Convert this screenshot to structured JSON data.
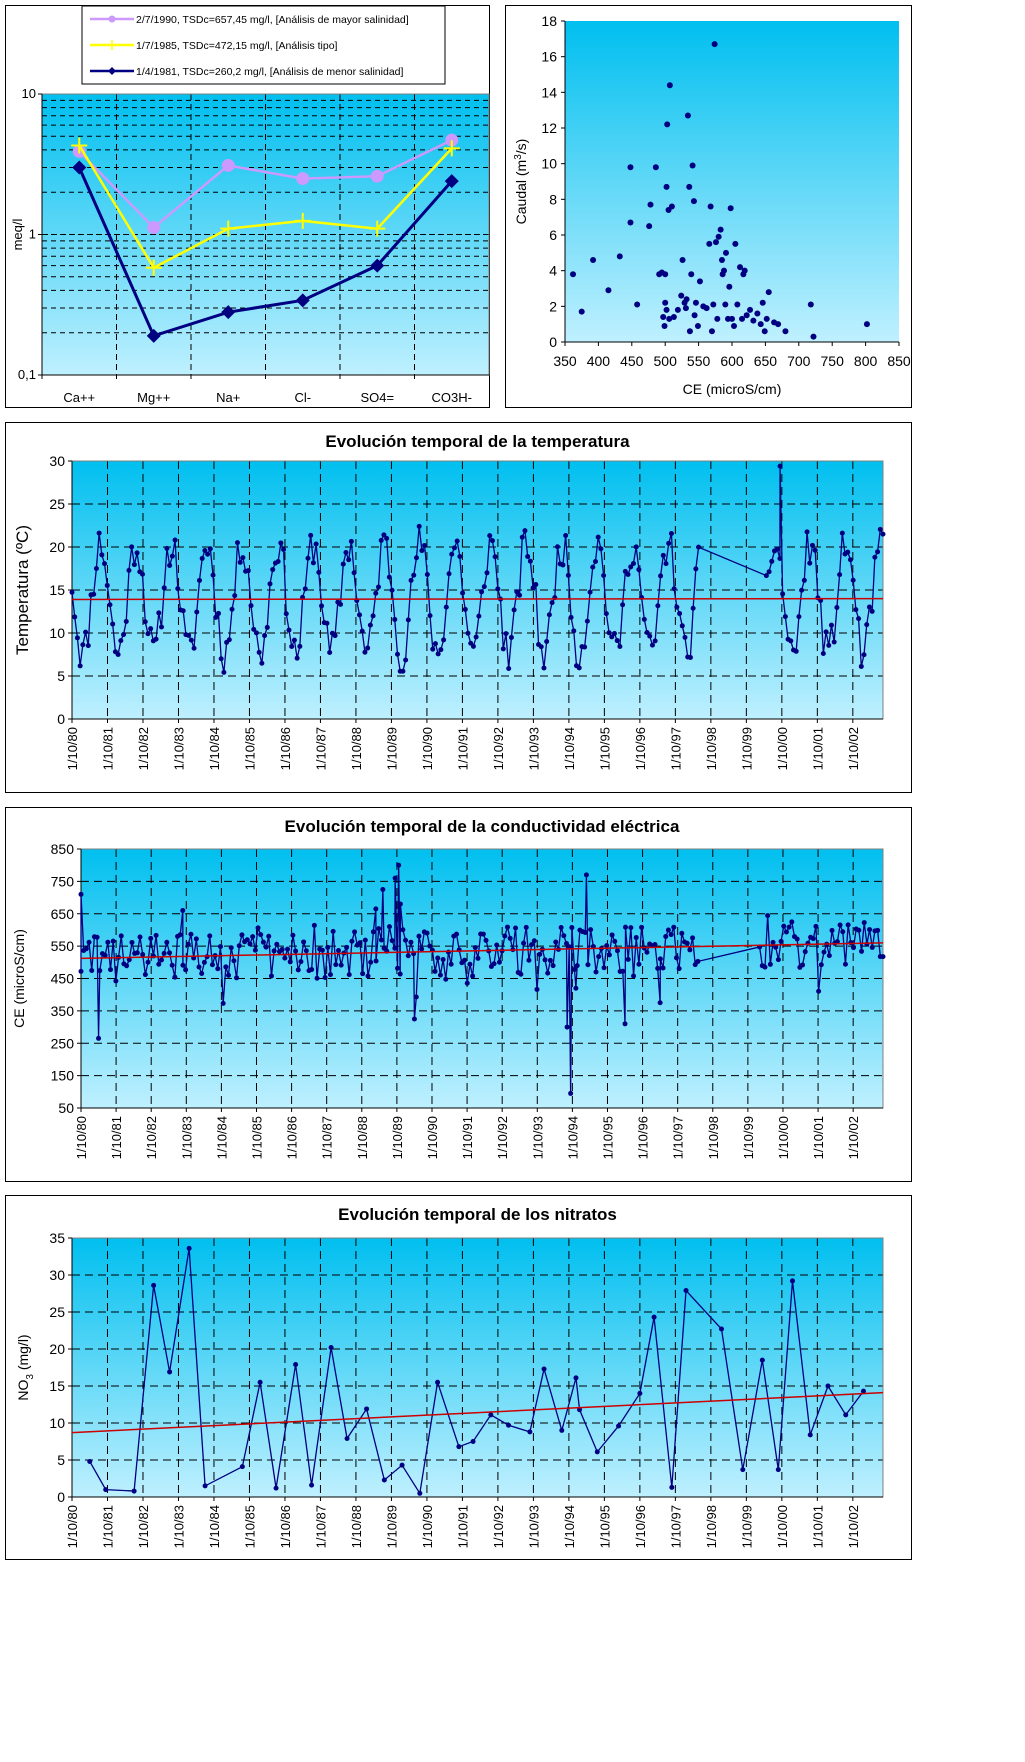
{
  "chart_data": [
    {
      "id": "schoeller",
      "type": "line",
      "yscale": "log",
      "ylim": [
        0.1,
        10
      ],
      "ylabel": "meq/l",
      "xlabel": "",
      "title": "",
      "grid": true,
      "legend_position": "top",
      "y_tick_labels": [
        "10",
        "1",
        "0,1"
      ],
      "categories": [
        "Ca++",
        "Mg++",
        "Na+",
        "Cl-",
        "SO4=",
        "CO3H-"
      ],
      "series": [
        {
          "name": "2/7/1990, TSDc=657,45 mg/l, [Análisis de mayor salinidad]",
          "color": "#cc99ff",
          "marker": "circle",
          "values": [
            3.9,
            1.12,
            3.1,
            2.5,
            2.6,
            4.7
          ]
        },
        {
          "name": "1/7/1985, TSDc=472,15 mg/l, [Análisis tipo]",
          "color": "#ffff00",
          "marker": "plus",
          "values": [
            4.3,
            0.58,
            1.1,
            1.25,
            1.1,
            4.1
          ]
        },
        {
          "name": "1/4/1981, TSDc=260,2 mg/l, [Análisis de menor salinidad]",
          "color": "#000080",
          "marker": "diamond",
          "values": [
            3.0,
            0.19,
            0.28,
            0.34,
            0.6,
            2.4
          ]
        }
      ]
    },
    {
      "id": "caudal",
      "type": "scatter",
      "xlabel": "CE (microS/cm)",
      "ylabel": "Caudal (m3/s)",
      "ylabel_main": "Caudal (m",
      "ylabel_sup": "3",
      "ylabel_tail": "/s)",
      "title": "",
      "xlim": [
        350,
        850
      ],
      "ylim": [
        0,
        18
      ],
      "x_ticks": [
        350,
        400,
        450,
        500,
        550,
        600,
        650,
        700,
        750,
        800,
        850
      ],
      "y_ticks": [
        0,
        2,
        4,
        6,
        8,
        10,
        12,
        14,
        16,
        18
      ],
      "grid": false,
      "color": "#000080",
      "points": [
        [
          362,
          3.8
        ],
        [
          375,
          1.7
        ],
        [
          392,
          4.6
        ],
        [
          415,
          2.9
        ],
        [
          432,
          4.8
        ],
        [
          448,
          9.8
        ],
        [
          448,
          6.7
        ],
        [
          458,
          2.1
        ],
        [
          476,
          6.5
        ],
        [
          478,
          7.7
        ],
        [
          486,
          9.8
        ],
        [
          491,
          3.8
        ],
        [
          495,
          3.9
        ],
        [
          497,
          1.4
        ],
        [
          499,
          0.9
        ],
        [
          500,
          3.8
        ],
        [
          500,
          2.2
        ],
        [
          502,
          1.8
        ],
        [
          502,
          8.7
        ],
        [
          503,
          12.2
        ],
        [
          506,
          1.3
        ],
        [
          505,
          7.4
        ],
        [
          507,
          14.4
        ],
        [
          510,
          7.6
        ],
        [
          513,
          1.4
        ],
        [
          519,
          1.8
        ],
        [
          524,
          2.6
        ],
        [
          526,
          4.6
        ],
        [
          529,
          2.2
        ],
        [
          531,
          1.9
        ],
        [
          532,
          2.4
        ],
        [
          534,
          12.7
        ],
        [
          536,
          8.7
        ],
        [
          537,
          0.6
        ],
        [
          539,
          3.8
        ],
        [
          541,
          9.9
        ],
        [
          543,
          7.9
        ],
        [
          544,
          1.5
        ],
        [
          546,
          2.2
        ],
        [
          549,
          0.9
        ],
        [
          552,
          3.4
        ],
        [
          557,
          2.0
        ],
        [
          562,
          1.9
        ],
        [
          566,
          5.5
        ],
        [
          568,
          7.6
        ],
        [
          570,
          0.6
        ],
        [
          572,
          2.1
        ],
        [
          574,
          16.7
        ],
        [
          576,
          5.6
        ],
        [
          578,
          1.3
        ],
        [
          580,
          5.9
        ],
        [
          583,
          6.3
        ],
        [
          585,
          4.6
        ],
        [
          586,
          3.8
        ],
        [
          588,
          4.0
        ],
        [
          590,
          2.1
        ],
        [
          591,
          5.0
        ],
        [
          594,
          1.3
        ],
        [
          596,
          3.1
        ],
        [
          598,
          7.5
        ],
        [
          600,
          1.3
        ],
        [
          603,
          0.9
        ],
        [
          605,
          5.5
        ],
        [
          608,
          2.1
        ],
        [
          612,
          4.2
        ],
        [
          615,
          1.3
        ],
        [
          617,
          3.8
        ],
        [
          619,
          4.0
        ],
        [
          622,
          1.5
        ],
        [
          627,
          1.8
        ],
        [
          632,
          1.2
        ],
        [
          638,
          1.6
        ],
        [
          643,
          1.0
        ],
        [
          646,
          2.2
        ],
        [
          649,
          0.6
        ],
        [
          652,
          1.3
        ],
        [
          655,
          2.8
        ],
        [
          663,
          1.1
        ],
        [
          669,
          1.0
        ],
        [
          680,
          0.6
        ],
        [
          718,
          2.1
        ],
        [
          722,
          0.3
        ],
        [
          802,
          1.0
        ]
      ]
    },
    {
      "id": "temperatura",
      "type": "line",
      "title": "Evolución temporal de la temperatura",
      "ylabel": "Temperatura (ºC)",
      "xlabel": "",
      "ylim": [
        0,
        30
      ],
      "y_ticks": [
        0,
        5,
        10,
        15,
        20,
        25,
        30
      ],
      "x_tick_labels": [
        "1/10/80",
        "1/10/81",
        "1/10/82",
        "1/10/83",
        "1/10/84",
        "1/10/85",
        "1/10/86",
        "1/10/87",
        "1/10/88",
        "1/10/89",
        "1/10/90",
        "1/10/91",
        "1/10/92",
        "1/10/93",
        "1/10/94",
        "1/10/95",
        "1/10/96",
        "1/10/97",
        "1/10/98",
        "1/10/99",
        "1/10/00",
        "1/10/01",
        "1/10/02"
      ],
      "grid": true,
      "series_color": "#000080",
      "trend_color": "#cc0000",
      "trend": {
        "start": 13.9,
        "end": 14.0
      },
      "gap": [
        17.7,
        19.5
      ],
      "spike": {
        "x": 19.95,
        "y": 29.4
      },
      "seed": 11,
      "generator": {
        "kind": "seasonal",
        "x_start": 0.0,
        "x_end": 22.85,
        "n": 300,
        "mean": 14.0,
        "amp": 6.4,
        "noise": 2.4,
        "min": 5.0,
        "max": 25.0
      }
    },
    {
      "id": "conductividad",
      "type": "line",
      "title": "Evolución temporal de la conductividad eléctrica",
      "ylabel": "CE (microS/cm)",
      "xlabel": "",
      "ylim": [
        50,
        850
      ],
      "y_ticks": [
        50,
        150,
        250,
        350,
        450,
        550,
        650,
        750,
        850
      ],
      "x_tick_labels": [
        "1/10/80",
        "1/10/81",
        "1/10/82",
        "1/10/83",
        "1/10/84",
        "1/10/85",
        "1/10/86",
        "1/10/87",
        "1/10/88",
        "1/10/89",
        "1/10/90",
        "1/10/91",
        "1/10/92",
        "1/10/93",
        "1/10/94",
        "1/10/95",
        "1/10/96",
        "1/10/97",
        "1/10/98",
        "1/10/99",
        "1/10/00",
        "1/10/01",
        "1/10/02"
      ],
      "grid": true,
      "series_color": "#000080",
      "trend_color": "#cc0000",
      "trend": {
        "start": 512,
        "end": 560
      },
      "gap": [
        17.6,
        19.3
      ],
      "seed": 29,
      "fixed_points": [
        [
          0.0,
          710
        ],
        [
          0.5,
          265
        ],
        [
          2.9,
          660
        ],
        [
          8.4,
          665
        ],
        [
          8.6,
          725
        ],
        [
          8.95,
          760
        ],
        [
          9.05,
          800
        ],
        [
          9.1,
          680
        ],
        [
          9.5,
          325
        ],
        [
          13.85,
          300
        ],
        [
          13.95,
          95
        ],
        [
          14.1,
          420
        ],
        [
          14.4,
          770
        ],
        [
          15.5,
          310
        ],
        [
          16.5,
          375
        ]
      ],
      "generator": {
        "kind": "random",
        "x_start": 0.0,
        "x_end": 22.85,
        "n": 300,
        "base_start": 510,
        "base_end": 555,
        "noise": 75,
        "min": 340,
        "max": 720
      }
    },
    {
      "id": "nitratos",
      "type": "line",
      "title": "Evolución temporal de los nitratos",
      "ylabel": "NO3 (mg/l)",
      "ylabel_main": "NO",
      "ylabel_sub": "3",
      "ylabel_tail": " (mg/l)",
      "xlabel": "",
      "ylim": [
        0,
        35
      ],
      "y_ticks": [
        0,
        5,
        10,
        15,
        20,
        25,
        30,
        35
      ],
      "x_tick_labels": [
        "1/10/80",
        "1/10/81",
        "1/10/82",
        "1/10/83",
        "1/10/84",
        "1/10/85",
        "1/10/86",
        "1/10/87",
        "1/10/88",
        "1/10/89",
        "1/10/90",
        "1/10/91",
        "1/10/92",
        "1/10/93",
        "1/10/94",
        "1/10/95",
        "1/10/96",
        "1/10/97",
        "1/10/98",
        "1/10/99",
        "1/10/00",
        "1/10/01",
        "1/10/02"
      ],
      "grid": true,
      "series_color": "#000080",
      "trend_color": "#cc0000",
      "trend": {
        "start": 8.7,
        "end": 14.1
      },
      "points": [
        [
          0.5,
          4.8
        ],
        [
          0.95,
          1.0
        ],
        [
          1.75,
          0.8
        ],
        [
          2.3,
          28.6
        ],
        [
          2.75,
          16.9
        ],
        [
          3.3,
          33.6
        ],
        [
          3.75,
          1.5
        ],
        [
          4.8,
          4.1
        ],
        [
          5.3,
          15.5
        ],
        [
          5.75,
          1.2
        ],
        [
          6.3,
          17.9
        ],
        [
          6.75,
          1.6
        ],
        [
          7.3,
          20.2
        ],
        [
          7.75,
          7.9
        ],
        [
          8.3,
          11.9
        ],
        [
          8.8,
          2.3
        ],
        [
          9.3,
          4.3
        ],
        [
          9.8,
          0.5
        ],
        [
          10.3,
          15.5
        ],
        [
          10.9,
          6.8
        ],
        [
          11.3,
          7.5
        ],
        [
          11.8,
          11.1
        ],
        [
          12.3,
          9.7
        ],
        [
          12.9,
          8.8
        ],
        [
          13.3,
          17.3
        ],
        [
          13.8,
          9.0
        ],
        [
          14.2,
          16.1
        ],
        [
          14.3,
          11.8
        ],
        [
          14.8,
          6.1
        ],
        [
          15.4,
          9.6
        ],
        [
          16.0,
          14.0
        ],
        [
          16.4,
          24.3
        ],
        [
          16.9,
          1.3
        ],
        [
          17.3,
          27.9
        ],
        [
          18.3,
          22.7
        ],
        [
          18.9,
          3.7
        ],
        [
          19.45,
          18.5
        ],
        [
          19.9,
          3.7
        ],
        [
          20.3,
          29.2
        ],
        [
          20.8,
          8.4
        ],
        [
          21.3,
          15.0
        ],
        [
          21.8,
          11.1
        ],
        [
          22.3,
          14.3
        ]
      ]
    }
  ]
}
